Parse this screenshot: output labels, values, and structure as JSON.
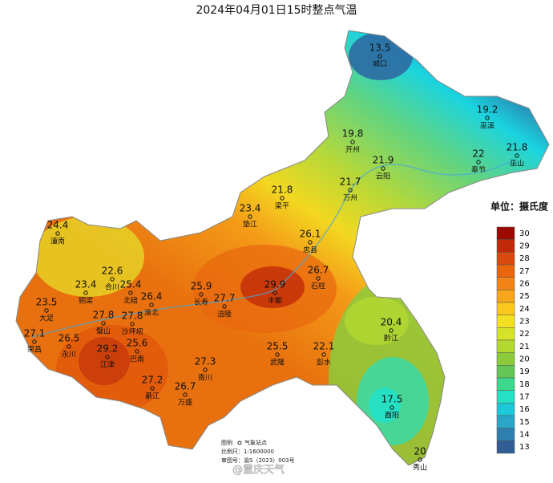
{
  "title": "2024年04月01日15时整点气温",
  "unit_label": "单位：摄氏度",
  "stations": [
    {
      "value": 13.5,
      "name": "城口"
    },
    {
      "value": 19.2,
      "name": "巫溪"
    },
    {
      "value": 19.8,
      "name": "开州"
    },
    {
      "value": 21.9,
      "name": "云阳"
    },
    {
      "value": 22,
      "name": "奉节"
    },
    {
      "value": 21.8,
      "name": "巫山"
    },
    {
      "value": 21.7,
      "name": "万州"
    },
    {
      "value": 21.8,
      "name": "梁平"
    },
    {
      "value": 23.4,
      "name": "垫江"
    },
    {
      "value": 26.1,
      "name": "忠县"
    },
    {
      "value": 24.4,
      "name": "潼南"
    },
    {
      "value": 22.6,
      "name": "合川"
    },
    {
      "value": 25.4,
      "name": "北碚"
    },
    {
      "value": 26.4,
      "name": "渝北"
    },
    {
      "value": 25.9,
      "name": "长寿"
    },
    {
      "value": 27.7,
      "name": "涪陵"
    },
    {
      "value": 29.9,
      "name": "丰都"
    },
    {
      "value": 26.7,
      "name": "石柱"
    },
    {
      "value": 23.4,
      "name": "铜梁"
    },
    {
      "value": 23.5,
      "name": "大足"
    },
    {
      "value": 27.8,
      "name": "璧山"
    },
    {
      "value": 27.8,
      "name": "沙坪坝"
    },
    {
      "value": 27.1,
      "name": "荣昌"
    },
    {
      "value": 26.5,
      "name": "永川"
    },
    {
      "value": 29.2,
      "name": "江津"
    },
    {
      "value": 25.6,
      "name": "巴南"
    },
    {
      "value": 20.4,
      "name": "黔江"
    },
    {
      "value": 22.1,
      "name": "彭水"
    },
    {
      "value": 25.5,
      "name": "武隆"
    },
    {
      "value": 27.3,
      "name": "南川"
    },
    {
      "value": 27.2,
      "name": "綦江"
    },
    {
      "value": 26.7,
      "name": "万盛"
    },
    {
      "value": 17.5,
      "name": "酉阳"
    },
    {
      "value": 20,
      "name": "秀山"
    }
  ],
  "legend": {
    "ticks": [
      30,
      29,
      28,
      27,
      26,
      25,
      24,
      23,
      22,
      21,
      20,
      19,
      18,
      17,
      16,
      15,
      14,
      13
    ],
    "colors": [
      "#9a0a00",
      "#c02a08",
      "#d84a10",
      "#e8660e",
      "#f08418",
      "#f6a51c",
      "#fbc81e",
      "#f3e020",
      "#d5e428",
      "#b3d832",
      "#8ccb3c",
      "#64c654",
      "#3ed88c",
      "#26e0c4",
      "#1ec8d8",
      "#2aa6c8",
      "#2e80b0",
      "#305e94"
    ]
  },
  "notes": [
    "图例",
    "气象站点",
    "比例尺：1:1600000",
    "审图号：渝S（2023）003号"
  ],
  "watermark": "@重庆天气"
}
